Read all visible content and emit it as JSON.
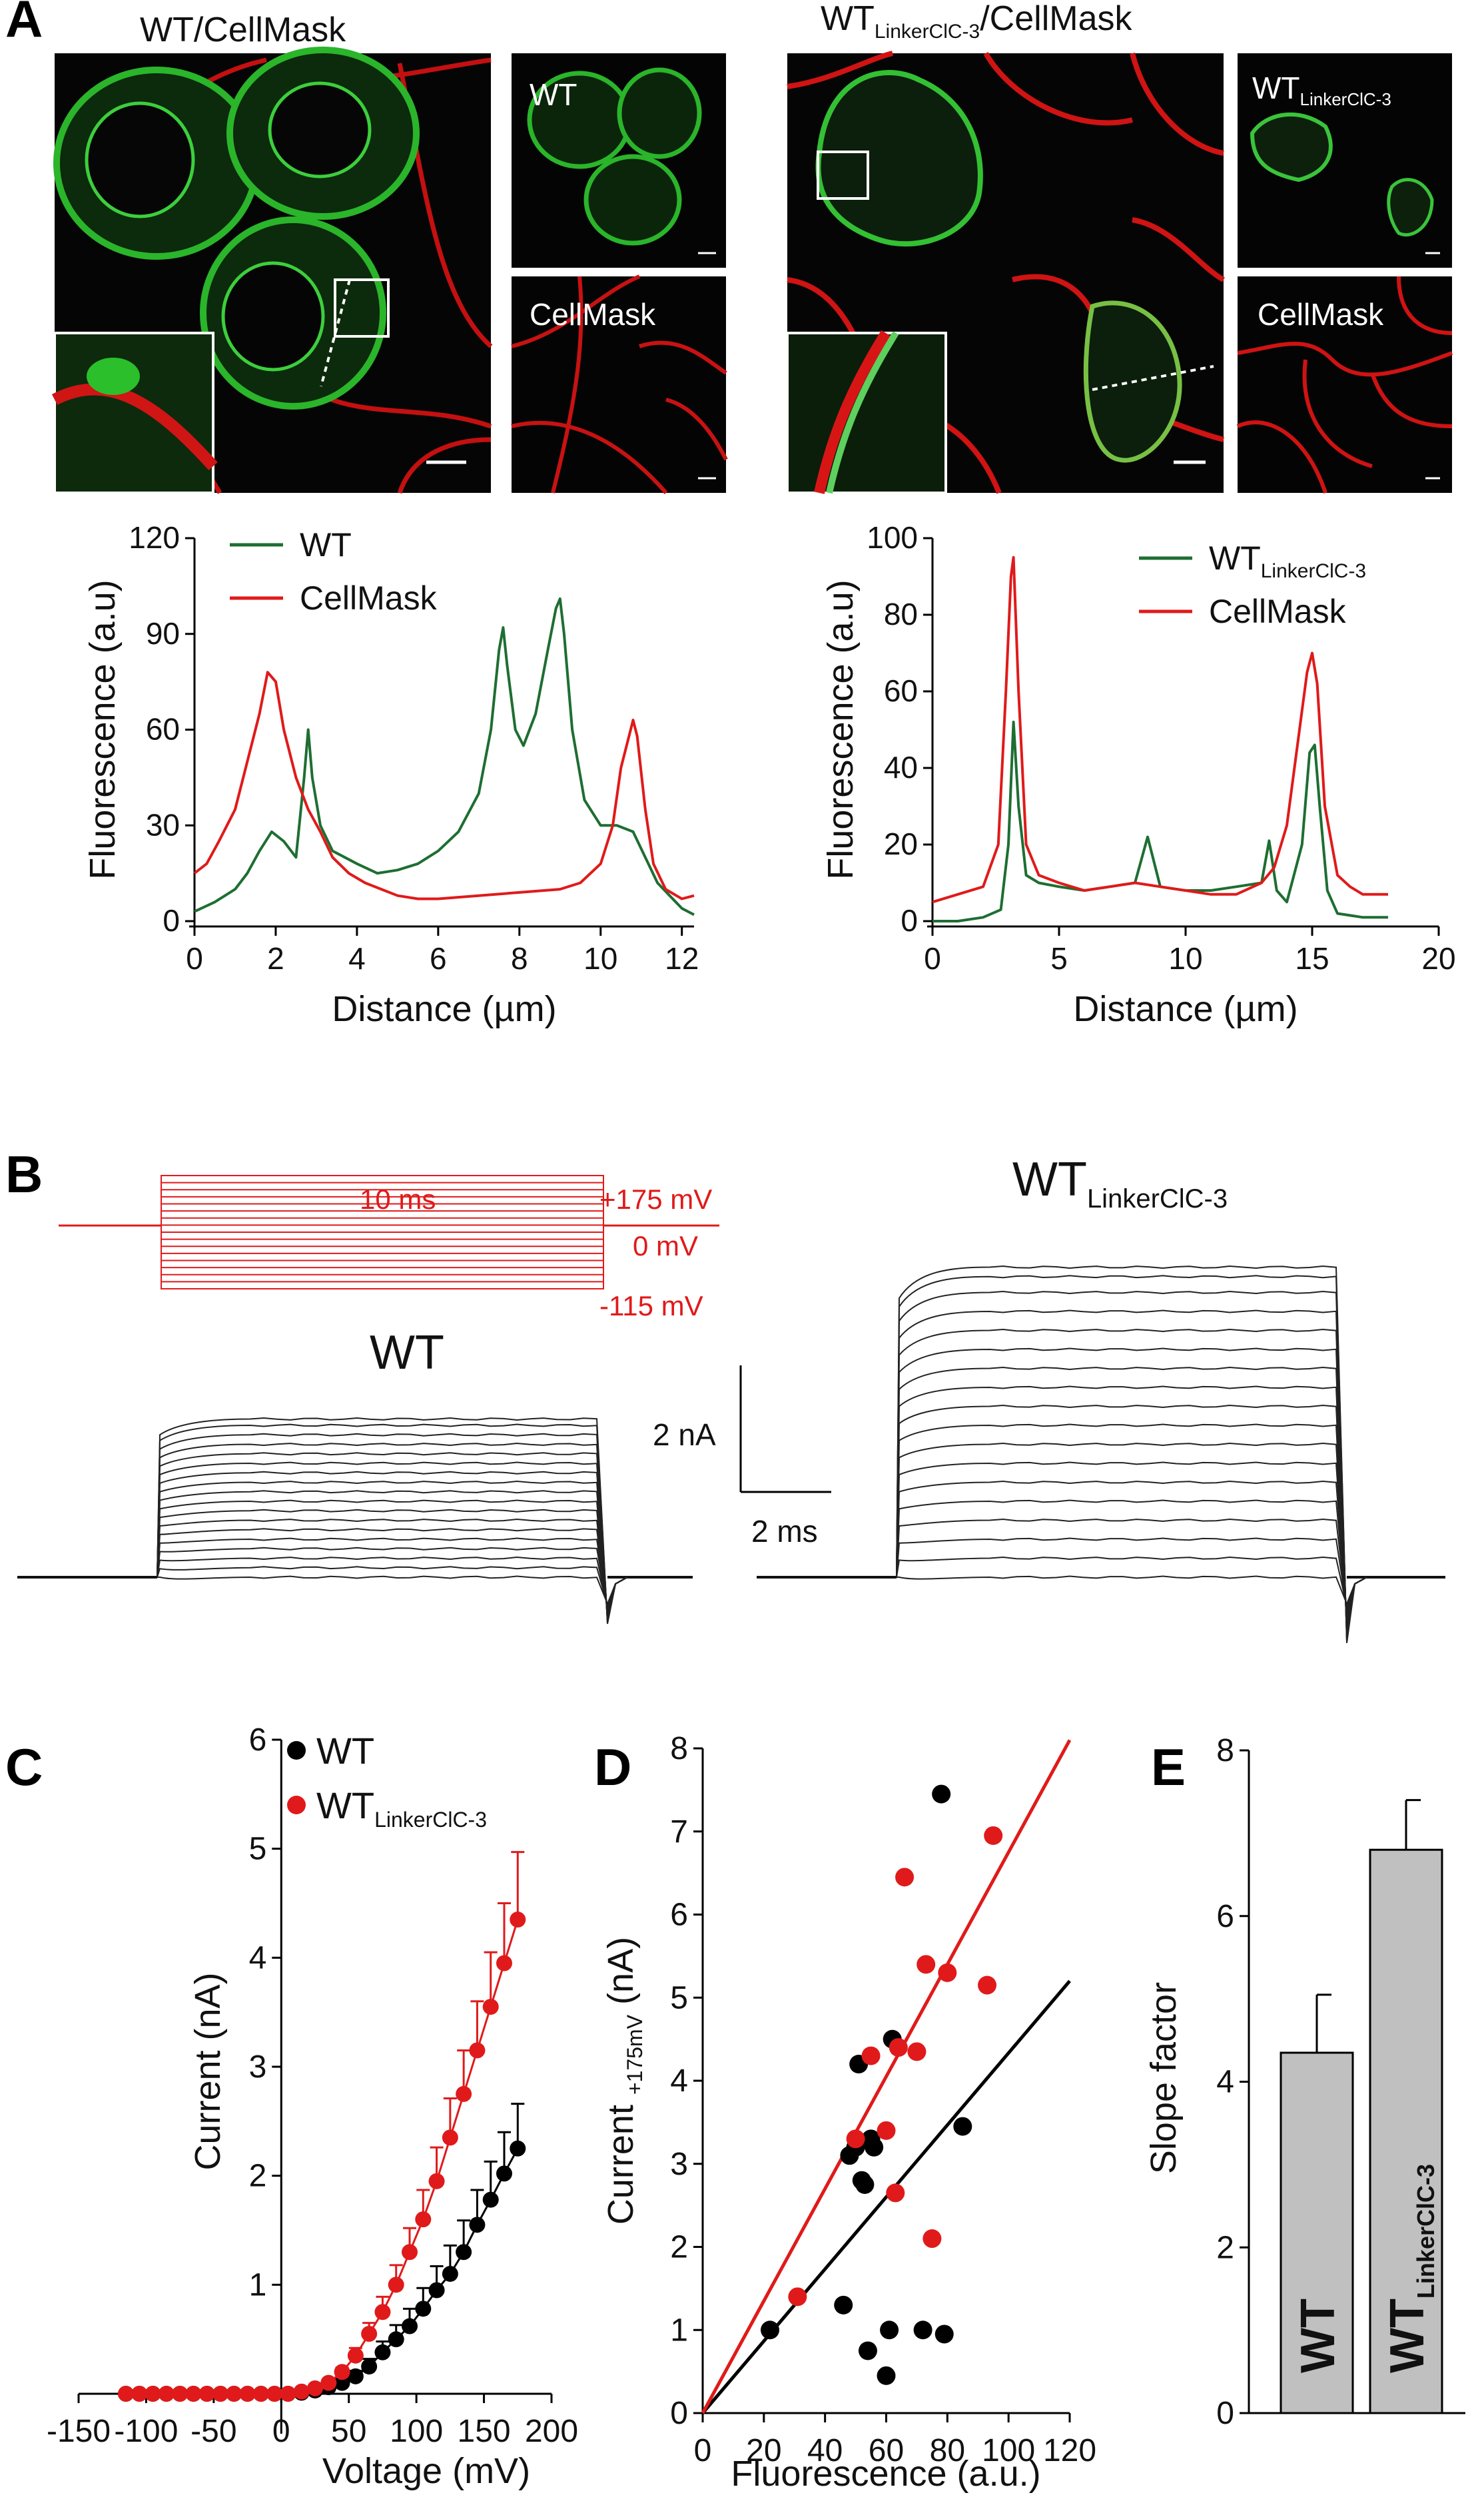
{
  "panels": {
    "A": "A",
    "B": "B",
    "C": "C",
    "D": "D",
    "E": "E"
  },
  "panelA": {
    "left_title": "WT/CellMask",
    "left_small_top": "WT",
    "left_small_bottom": "CellMask",
    "right_title_main": "WT",
    "right_title_sub": "LinkerClC-3",
    "right_title_suffix": "/CellMask",
    "right_small_top_main": "WT",
    "right_small_top_sub": "LinkerClC-3",
    "right_small_bottom": "CellMask",
    "colors": {
      "membrane": "#e01010",
      "protein": "#22bb22"
    }
  },
  "panelB": {
    "protocol_duration": "10 ms",
    "protocol_top": "+175 mV",
    "protocol_mid": "0 mV",
    "protocol_bottom": "-115 mV",
    "trace_label_wt": "WT",
    "trace_label_linker_main": "WT",
    "trace_label_linker_sub": "LinkerClC-3",
    "scale_current": "2 nA",
    "scale_time": "2 ms",
    "wt_steady_currents_nA": [
      0.0,
      0.15,
      0.3,
      0.45,
      0.6,
      0.75,
      0.9,
      1.05,
      1.2,
      1.35,
      1.5,
      1.65,
      1.8,
      1.95,
      2.1,
      2.25,
      2.4,
      2.5
    ],
    "linker_steady_currents_nA": [
      0.0,
      0.3,
      0.6,
      0.9,
      1.2,
      1.5,
      1.8,
      2.1,
      2.4,
      2.7,
      3.0,
      3.3,
      3.6,
      3.9,
      4.2,
      4.5,
      4.75,
      4.9
    ]
  },
  "chart_data": [
    {
      "id": "A-left-profile",
      "type": "line",
      "xlabel": "Distance (µm)",
      "ylabel": "Fluorescence (a.u)",
      "xlim": [
        0,
        12.3
      ],
      "ylim": [
        0,
        120
      ],
      "xticks": [
        "0",
        "2",
        "4",
        "6",
        "8",
        "10",
        "12"
      ],
      "yticks": [
        "0",
        "30",
        "60",
        "90",
        "120"
      ],
      "legend": [
        "WT",
        "CellMask"
      ],
      "series": [
        {
          "name": "WT",
          "color": "#1e6e32",
          "x": [
            0,
            0.5,
            1,
            1.3,
            1.6,
            1.9,
            2.2,
            2.5,
            2.7,
            2.8,
            2.9,
            3.1,
            3.4,
            3.7,
            4.0,
            4.5,
            5,
            5.5,
            6,
            6.5,
            7,
            7.3,
            7.5,
            7.6,
            7.7,
            7.9,
            8.1,
            8.4,
            8.7,
            8.9,
            9.0,
            9.1,
            9.3,
            9.6,
            10,
            10.4,
            10.8,
            11.1,
            11.4,
            11.7,
            12,
            12.3
          ],
          "y": [
            3,
            6,
            10,
            15,
            22,
            28,
            25,
            20,
            45,
            60,
            45,
            30,
            22,
            20,
            18,
            15,
            16,
            18,
            22,
            28,
            40,
            60,
            85,
            92,
            80,
            60,
            55,
            65,
            85,
            98,
            101,
            90,
            60,
            38,
            30,
            30,
            28,
            20,
            12,
            8,
            4,
            2
          ]
        },
        {
          "name": "CellMask",
          "color": "#e01a1a",
          "x": [
            0,
            0.3,
            0.6,
            1,
            1.3,
            1.6,
            1.8,
            2.0,
            2.2,
            2.5,
            2.8,
            3.1,
            3.4,
            3.8,
            4.2,
            4.6,
            5,
            5.5,
            6,
            7,
            8,
            9,
            9.5,
            10,
            10.3,
            10.5,
            10.7,
            10.8,
            10.9,
            11.1,
            11.3,
            11.6,
            12,
            12.3
          ],
          "y": [
            15,
            18,
            25,
            35,
            50,
            65,
            78,
            75,
            60,
            45,
            35,
            28,
            20,
            15,
            12,
            10,
            8,
            7,
            7,
            8,
            9,
            10,
            12,
            18,
            30,
            48,
            58,
            63,
            58,
            35,
            18,
            10,
            7,
            8
          ]
        }
      ]
    },
    {
      "id": "A-right-profile",
      "type": "line",
      "xlabel": "Distance (µm)",
      "ylabel": "Fluorescence (a.u)",
      "xlim": [
        0,
        20
      ],
      "ylim": [
        0,
        100
      ],
      "xticks": [
        "0",
        "5",
        "10",
        "15",
        "20"
      ],
      "yticks": [
        "0",
        "20",
        "40",
        "60",
        "80",
        "100"
      ],
      "legend": [
        "WTLinkerClC-3",
        "CellMask"
      ],
      "series": [
        {
          "name": "WTLinkerClC-3",
          "color": "#1e6e32",
          "x": [
            0,
            1,
            2,
            2.7,
            3.0,
            3.2,
            3.4,
            3.7,
            4.2,
            5,
            6,
            7,
            8,
            8.5,
            9,
            10,
            11,
            12,
            13,
            13.3,
            13.6,
            14,
            14.6,
            14.9,
            15.1,
            15.3,
            15.6,
            16,
            17,
            18
          ],
          "y": [
            0,
            0,
            1,
            3,
            20,
            52,
            30,
            12,
            10,
            9,
            8,
            9,
            10,
            22,
            9,
            8,
            8,
            9,
            10,
            21,
            8,
            5,
            20,
            44,
            46,
            30,
            8,
            2,
            1,
            1
          ]
        },
        {
          "name": "CellMask",
          "color": "#e01a1a",
          "x": [
            0,
            1,
            2,
            2.6,
            2.9,
            3.1,
            3.2,
            3.4,
            3.7,
            4.2,
            5,
            6,
            7,
            8,
            9,
            10,
            11,
            12,
            13,
            13.5,
            14,
            14.5,
            14.8,
            15.0,
            15.2,
            15.5,
            16,
            16.5,
            17,
            18
          ],
          "y": [
            5,
            7,
            9,
            20,
            60,
            90,
            95,
            60,
            20,
            12,
            10,
            8,
            9,
            10,
            9,
            8,
            7,
            7,
            10,
            14,
            25,
            50,
            65,
            70,
            62,
            30,
            12,
            9,
            7,
            7
          ]
        }
      ]
    },
    {
      "id": "C-IV",
      "type": "scatter",
      "xlabel": "Voltage (mV)",
      "ylabel": "Current (nA)",
      "xlim": [
        -150,
        200
      ],
      "ylim": [
        0,
        6
      ],
      "xticks": [
        "-150",
        "-100",
        "-50",
        "0",
        "50",
        "100",
        "150",
        "200"
      ],
      "yticks": [
        "1",
        "2",
        "3",
        "4",
        "5",
        "6"
      ],
      "legend": [
        "WT",
        "WTLinkerClC-3"
      ],
      "series": [
        {
          "name": "WT",
          "color": "#000000",
          "x": [
            -115,
            -105,
            -95,
            -85,
            -75,
            -65,
            -55,
            -45,
            -35,
            -25,
            -15,
            -5,
            5,
            15,
            25,
            35,
            45,
            55,
            65,
            75,
            85,
            95,
            105,
            115,
            125,
            135,
            145,
            155,
            165,
            175
          ],
          "y": [
            0,
            0,
            0,
            0,
            0,
            0,
            0,
            0,
            0,
            0,
            0,
            0,
            0,
            0.01,
            0.03,
            0.06,
            0.1,
            0.16,
            0.25,
            0.38,
            0.5,
            0.62,
            0.78,
            0.95,
            1.1,
            1.3,
            1.55,
            1.78,
            2.02,
            2.25
          ],
          "err": [
            0,
            0,
            0,
            0,
            0,
            0,
            0,
            0,
            0,
            0,
            0,
            0,
            0,
            0,
            0.01,
            0.02,
            0.03,
            0.05,
            0.07,
            0.1,
            0.13,
            0.16,
            0.19,
            0.22,
            0.26,
            0.29,
            0.32,
            0.35,
            0.38,
            0.41
          ]
        },
        {
          "name": "WTLinkerClC-3",
          "color": "#e01a1a",
          "x": [
            -115,
            -105,
            -95,
            -85,
            -75,
            -65,
            -55,
            -45,
            -35,
            -25,
            -15,
            -5,
            5,
            15,
            25,
            35,
            45,
            55,
            65,
            75,
            85,
            95,
            105,
            115,
            125,
            135,
            145,
            155,
            165,
            175
          ],
          "y": [
            0,
            0,
            0,
            0,
            0,
            0,
            0,
            0,
            0,
            0,
            0,
            0,
            0,
            0.02,
            0.05,
            0.1,
            0.2,
            0.35,
            0.55,
            0.75,
            1.0,
            1.3,
            1.6,
            1.95,
            2.35,
            2.75,
            3.15,
            3.55,
            3.95,
            4.35
          ],
          "err": [
            0,
            0,
            0,
            0,
            0,
            0,
            0,
            0,
            0,
            0,
            0,
            0,
            0,
            0,
            0.01,
            0.02,
            0.04,
            0.07,
            0.1,
            0.14,
            0.18,
            0.22,
            0.27,
            0.31,
            0.36,
            0.4,
            0.45,
            0.5,
            0.55,
            0.62
          ]
        }
      ]
    },
    {
      "id": "D-correlation",
      "type": "scatter",
      "xlabel": "Fluorescence (a.u.)",
      "ylabel_main": "Current",
      "ylabel_sub": "+175mV",
      "ylabel_unit": "(nA)",
      "xlim": [
        0,
        120
      ],
      "ylim": [
        0,
        8
      ],
      "xticks": [
        "0",
        "20",
        "40",
        "60",
        "80",
        "100",
        "120"
      ],
      "yticks": [
        "0",
        "1",
        "2",
        "3",
        "4",
        "5",
        "6",
        "7",
        "8"
      ],
      "series": [
        {
          "name": "WT",
          "color": "#000000",
          "x": [
            22,
            46,
            48,
            50,
            51,
            52,
            53,
            54,
            55,
            56,
            60,
            61,
            62,
            72,
            78,
            79,
            85
          ],
          "y": [
            1.0,
            1.3,
            3.1,
            3.2,
            4.2,
            2.8,
            2.75,
            0.75,
            3.3,
            3.2,
            0.45,
            1.0,
            4.5,
            1.0,
            7.45,
            0.95,
            3.45
          ]
        },
        {
          "name": "WTLinkerClC-3",
          "color": "#e01a1a",
          "x": [
            31,
            50,
            55,
            60,
            63,
            64,
            66,
            70,
            73,
            75,
            80,
            93,
            95
          ],
          "y": [
            1.4,
            3.3,
            4.3,
            3.4,
            2.65,
            4.4,
            6.45,
            4.35,
            5.4,
            2.1,
            5.3,
            5.15,
            6.95
          ]
        },
        {
          "name": "WT fit",
          "color": "#000000",
          "type": "line",
          "x": [
            0,
            120
          ],
          "y": [
            0,
            5.2
          ]
        },
        {
          "name": "WTLinkerClC-3 fit",
          "color": "#e01a1a",
          "type": "line",
          "x": [
            0,
            120
          ],
          "y": [
            0,
            8.1
          ]
        }
      ]
    },
    {
      "id": "E-slope",
      "type": "bar",
      "ylabel": "Slope factor",
      "ylim": [
        0,
        8
      ],
      "yticks": [
        "0",
        "2",
        "4",
        "6",
        "8"
      ],
      "categories": [
        "WT",
        "WTLinkerClC-3"
      ],
      "category_labels": [
        {
          "main": "WT",
          "sub": ""
        },
        {
          "main": "WT",
          "sub": "LinkerClC-3"
        }
      ],
      "values": [
        4.35,
        6.8
      ],
      "errors": [
        0.7,
        0.6
      ],
      "bar_color": "#c0c0c0"
    }
  ]
}
